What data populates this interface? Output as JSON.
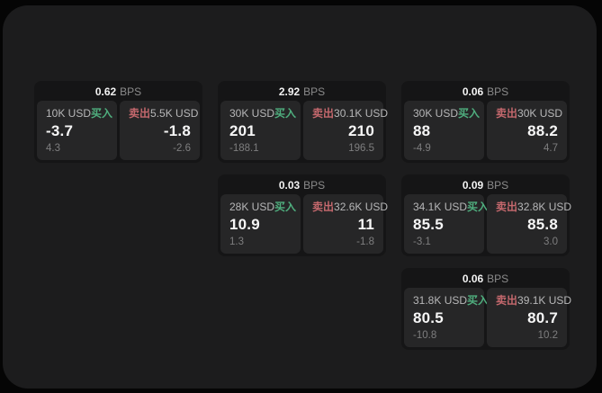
{
  "labels": {
    "bps_unit": "BPS",
    "buy": "买入",
    "sell": "卖出"
  },
  "colors": {
    "page_background": "#050505",
    "panel_background": "#1c1c1d",
    "card_background": "#151516",
    "tile_background": "#262627",
    "buy_accent": "#4fae7e",
    "sell_accent": "#c4686d",
    "primary_text": "#f6f6f6",
    "muted_text": "#8b8b8b"
  },
  "cards": [
    {
      "spread_bps": "0.62",
      "buy": {
        "size": "10K USD",
        "price": "-3.7",
        "sub_value": "4.3"
      },
      "sell": {
        "size": "5.5K USD",
        "price": "-1.8",
        "sub_value": "-2.6"
      }
    },
    {
      "spread_bps": "2.92",
      "buy": {
        "size": "30K USD",
        "price": "201",
        "sub_value": "-188.1"
      },
      "sell": {
        "size": "30.1K USD",
        "price": "210",
        "sub_value": "196.5"
      }
    },
    {
      "spread_bps": "0.06",
      "buy": {
        "size": "30K USD",
        "price": "88",
        "sub_value": "-4.9"
      },
      "sell": {
        "size": "30K USD",
        "price": "88.2",
        "sub_value": "4.7"
      }
    },
    {
      "spread_bps": "0.03",
      "buy": {
        "size": "28K USD",
        "price": "10.9",
        "sub_value": "1.3"
      },
      "sell": {
        "size": "32.6K USD",
        "price": "11",
        "sub_value": "-1.8"
      }
    },
    {
      "spread_bps": "0.09",
      "buy": {
        "size": "34.1K USD",
        "price": "85.5",
        "sub_value": "-3.1"
      },
      "sell": {
        "size": "32.8K USD",
        "price": "85.8",
        "sub_value": "3.0"
      }
    },
    {
      "spread_bps": "0.06",
      "buy": {
        "size": "31.8K USD",
        "price": "80.5",
        "sub_value": "-10.8"
      },
      "sell": {
        "size": "39.1K USD",
        "price": "80.7",
        "sub_value": "10.2"
      }
    }
  ]
}
